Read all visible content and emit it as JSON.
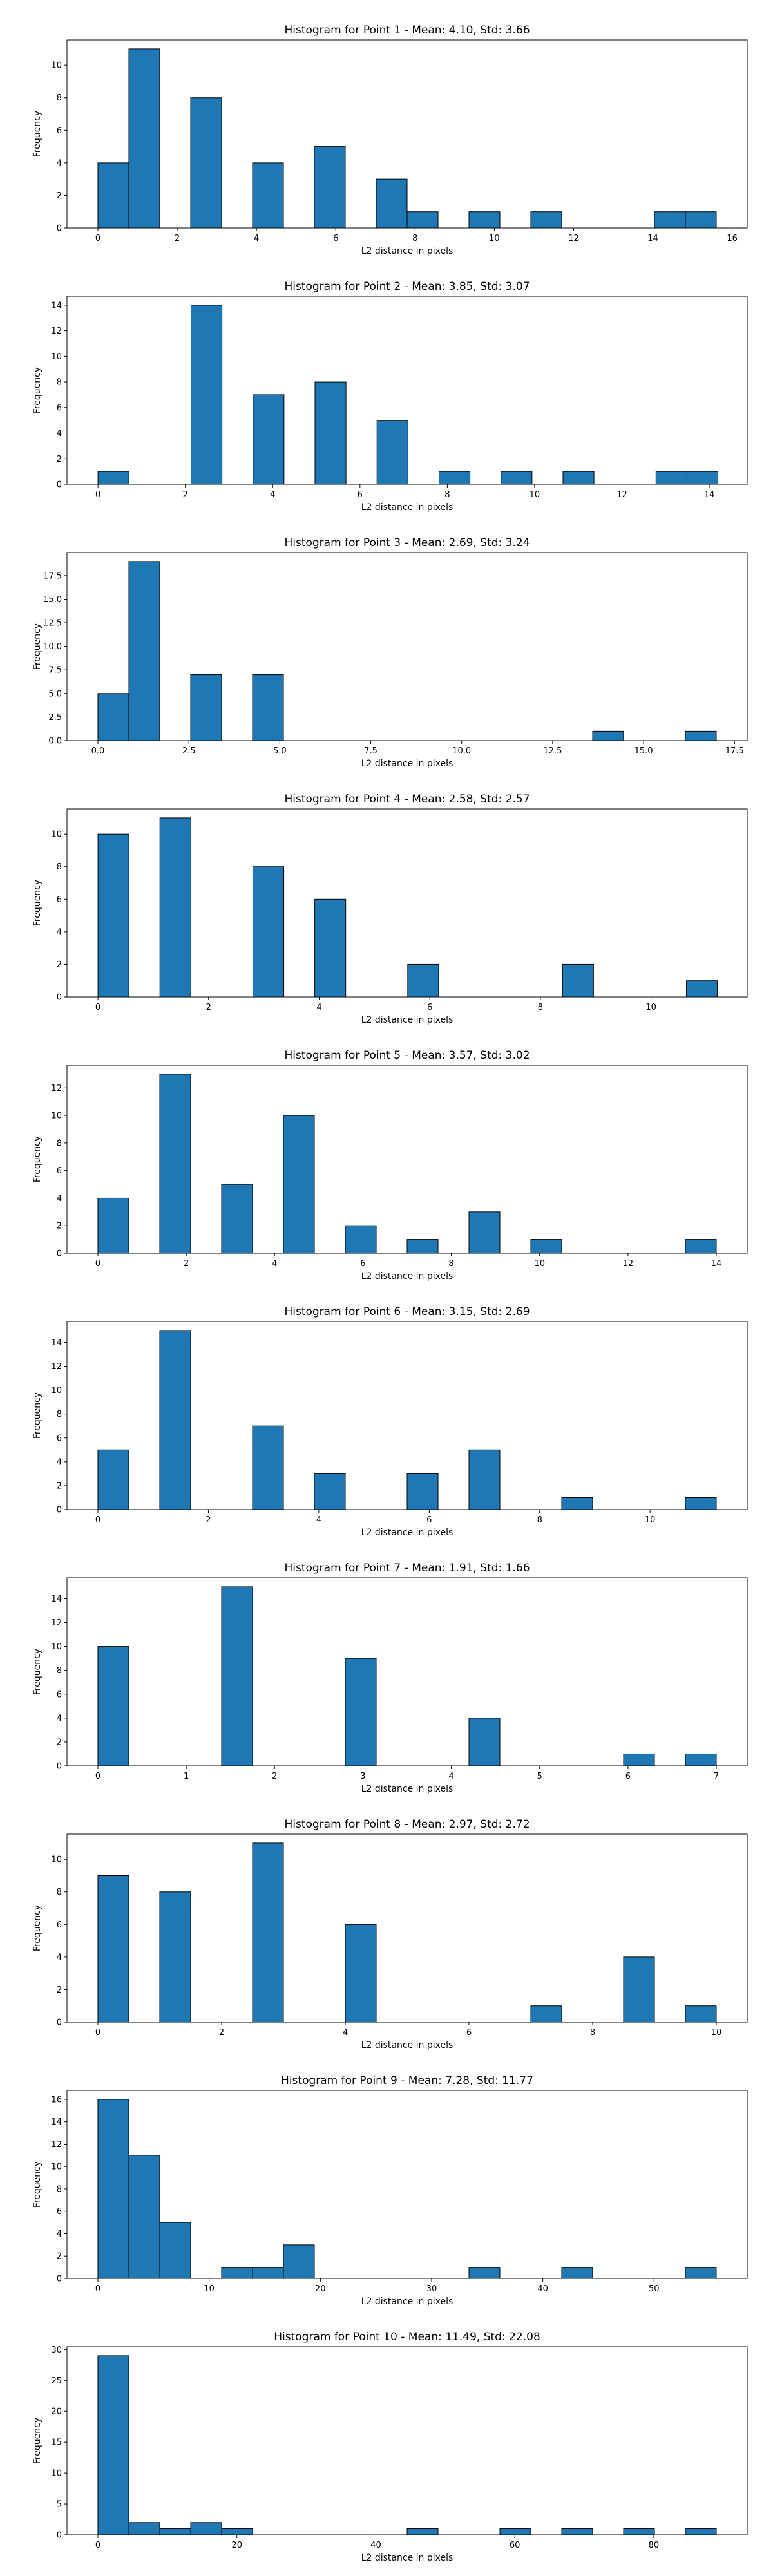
{
  "colors": {
    "bar_fill": "#1f77b4",
    "bar_edge": "#000000",
    "axes": "#000000"
  },
  "chart_data": [
    {
      "type": "bar",
      "title": "Histogram for Point 1 - Mean: 4.10, Std: 3.66",
      "xlabel": "L2 distance in pixels",
      "ylabel": "Frequency",
      "xlim": [
        -0.78,
        16.38
      ],
      "ylim": [
        0,
        11.55
      ],
      "xticks": [
        0,
        2,
        4,
        6,
        8,
        10,
        12,
        14,
        16
      ],
      "yticks": [
        0,
        2,
        4,
        6,
        8,
        10
      ],
      "bin_start": 0.0,
      "bin_width": 0.78,
      "values": [
        4,
        11,
        0,
        8,
        0,
        4,
        0,
        5,
        0,
        3,
        1,
        0,
        1,
        0,
        1,
        0,
        0,
        0,
        1,
        1
      ]
    },
    {
      "type": "bar",
      "title": "Histogram for Point 2 - Mean: 3.85, Std: 3.07",
      "xlabel": "L2 distance in pixels",
      "ylabel": "Frequency",
      "xlim": [
        -0.71,
        14.87
      ],
      "ylim": [
        0,
        14.7
      ],
      "xticks": [
        0,
        2,
        4,
        6,
        8,
        10,
        12,
        14
      ],
      "yticks": [
        0,
        2,
        4,
        6,
        8,
        10,
        12,
        14
      ],
      "bin_start": 0.0,
      "bin_width": 0.71,
      "values": [
        1,
        0,
        0,
        14,
        0,
        7,
        0,
        8,
        0,
        5,
        0,
        1,
        0,
        1,
        0,
        1,
        0,
        0,
        1,
        1
      ]
    },
    {
      "type": "bar",
      "title": "Histogram for Point 3 - Mean: 2.69, Std: 3.24",
      "xlabel": "L2 distance in pixels",
      "ylabel": "Frequency",
      "xlim": [
        -0.85,
        17.85
      ],
      "ylim": [
        0,
        19.95
      ],
      "xticks": [
        0.0,
        2.5,
        5.0,
        7.5,
        10.0,
        12.5,
        15.0,
        17.5
      ],
      "yticks": [
        0.0,
        2.5,
        5.0,
        7.5,
        10.0,
        12.5,
        15.0,
        17.5
      ],
      "ytick_decimals": 1,
      "xtick_decimals": 1,
      "bin_start": 0.0,
      "bin_width": 0.85,
      "values": [
        5,
        19,
        0,
        7,
        0,
        7,
        0,
        0,
        0,
        0,
        0,
        0,
        0,
        0,
        0,
        0,
        1,
        0,
        0,
        1
      ]
    },
    {
      "type": "bar",
      "title": "Histogram for Point 4 - Mean: 2.58, Std: 2.57",
      "xlabel": "L2 distance in pixels",
      "ylabel": "Frequency",
      "xlim": [
        -0.56,
        11.74
      ],
      "ylim": [
        0,
        11.55
      ],
      "xticks": [
        0,
        2,
        4,
        6,
        8,
        10
      ],
      "yticks": [
        0,
        2,
        4,
        6,
        8,
        10
      ],
      "bin_start": 0.0,
      "bin_width": 0.56,
      "values": [
        10,
        0,
        11,
        0,
        0,
        8,
        0,
        6,
        0,
        0,
        2,
        0,
        0,
        0,
        0,
        2,
        0,
        0,
        0,
        1
      ]
    },
    {
      "type": "bar",
      "title": "Histogram for Point 5 - Mean: 3.57, Std: 3.02",
      "xlabel": "L2 distance in pixels",
      "ylabel": "Frequency",
      "xlim": [
        -0.7,
        14.7
      ],
      "ylim": [
        0,
        13.65
      ],
      "xticks": [
        0,
        2,
        4,
        6,
        8,
        10,
        12,
        14
      ],
      "yticks": [
        0,
        2,
        4,
        6,
        8,
        10,
        12
      ],
      "bin_start": 0.0,
      "bin_width": 0.7,
      "values": [
        4,
        0,
        13,
        0,
        5,
        0,
        10,
        0,
        2,
        0,
        1,
        0,
        3,
        0,
        1,
        0,
        0,
        0,
        0,
        1
      ]
    },
    {
      "type": "bar",
      "title": "Histogram for Point 6 - Mean: 3.15, Std: 2.69",
      "xlabel": "L2 distance in pixels",
      "ylabel": "Frequency",
      "xlim": [
        -0.56,
        11.76
      ],
      "ylim": [
        0,
        15.75
      ],
      "xticks": [
        0,
        2,
        4,
        6,
        8,
        10
      ],
      "yticks": [
        0,
        2,
        4,
        6,
        8,
        10,
        12,
        14
      ],
      "bin_start": 0.0,
      "bin_width": 0.56,
      "values": [
        5,
        0,
        15,
        0,
        0,
        7,
        0,
        3,
        0,
        0,
        3,
        0,
        5,
        0,
        0,
        1,
        0,
        0,
        0,
        1
      ]
    },
    {
      "type": "bar",
      "title": "Histogram for Point 7 - Mean: 1.91, Std: 1.66",
      "xlabel": "L2 distance in pixels",
      "ylabel": "Frequency",
      "xlim": [
        -0.35,
        7.35
      ],
      "ylim": [
        0,
        15.75
      ],
      "xticks": [
        0,
        1,
        2,
        3,
        4,
        5,
        6,
        7
      ],
      "yticks": [
        0,
        2,
        4,
        6,
        8,
        10,
        12,
        14
      ],
      "bin_start": 0.0,
      "bin_width": 0.35,
      "values": [
        10,
        0,
        0,
        0,
        15,
        0,
        0,
        0,
        9,
        0,
        0,
        0,
        4,
        0,
        0,
        0,
        0,
        1,
        0,
        1
      ]
    },
    {
      "type": "bar",
      "title": "Histogram for Point 8 - Mean: 2.97, Std: 2.72",
      "xlabel": "L2 distance in pixels",
      "ylabel": "Frequency",
      "xlim": [
        -0.5,
        10.5
      ],
      "ylim": [
        0,
        11.55
      ],
      "xticks": [
        0,
        2,
        4,
        6,
        8,
        10
      ],
      "yticks": [
        0,
        2,
        4,
        6,
        8,
        10
      ],
      "bin_start": 0.0,
      "bin_width": 0.5,
      "values": [
        9,
        0,
        8,
        0,
        0,
        11,
        0,
        0,
        6,
        0,
        0,
        0,
        0,
        0,
        1,
        0,
        0,
        4,
        0,
        1
      ]
    },
    {
      "type": "bar",
      "title": "Histogram for Point 9 - Mean: 7.28, Std: 11.77",
      "xlabel": "L2 distance in pixels",
      "ylabel": "Frequency",
      "xlim": [
        -2.78,
        58.38
      ],
      "ylim": [
        0,
        16.8
      ],
      "xticks": [
        0,
        10,
        20,
        30,
        40,
        50
      ],
      "yticks": [
        0,
        2,
        4,
        6,
        8,
        10,
        12,
        14,
        16
      ],
      "bin_start": 0.0,
      "bin_width": 2.78,
      "values": [
        16,
        11,
        5,
        0,
        1,
        1,
        3,
        0,
        0,
        0,
        0,
        0,
        1,
        0,
        0,
        1,
        0,
        0,
        0,
        1
      ]
    },
    {
      "type": "bar",
      "title": "Histogram for Point 10 - Mean: 11.49, Std: 22.08",
      "xlabel": "L2 distance in pixels",
      "ylabel": "Frequency",
      "xlim": [
        -4.45,
        93.45
      ],
      "ylim": [
        0,
        30.45
      ],
      "xticks": [
        0,
        20,
        40,
        60,
        80
      ],
      "yticks": [
        0,
        5,
        10,
        15,
        20,
        25,
        30
      ],
      "bin_start": 0.0,
      "bin_width": 4.45,
      "values": [
        29,
        2,
        1,
        2,
        1,
        0,
        0,
        0,
        0,
        0,
        1,
        0,
        0,
        1,
        0,
        1,
        0,
        1,
        0,
        1
      ]
    }
  ]
}
